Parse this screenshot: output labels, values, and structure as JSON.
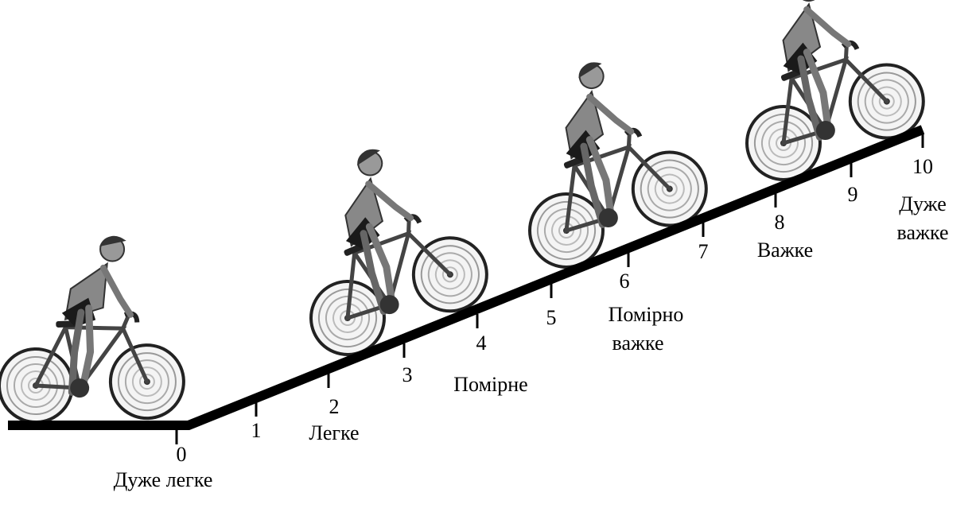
{
  "scale": {
    "points": [
      {
        "number": 0,
        "label": [
          "Дуже легке"
        ]
      },
      {
        "number": 1,
        "label": []
      },
      {
        "number": 2,
        "label": [
          "Легке"
        ]
      },
      {
        "number": 3,
        "label": []
      },
      {
        "number": 4,
        "label": [
          "Помірне"
        ]
      },
      {
        "number": 5,
        "label": []
      },
      {
        "number": 6,
        "label": [
          "Помірно",
          "важке"
        ]
      },
      {
        "number": 7,
        "label": []
      },
      {
        "number": 8,
        "label": [
          "Важке"
        ]
      },
      {
        "number": 9,
        "label": []
      },
      {
        "number": 10,
        "label": [
          "Дуже",
          "важке"
        ]
      }
    ]
  }
}
